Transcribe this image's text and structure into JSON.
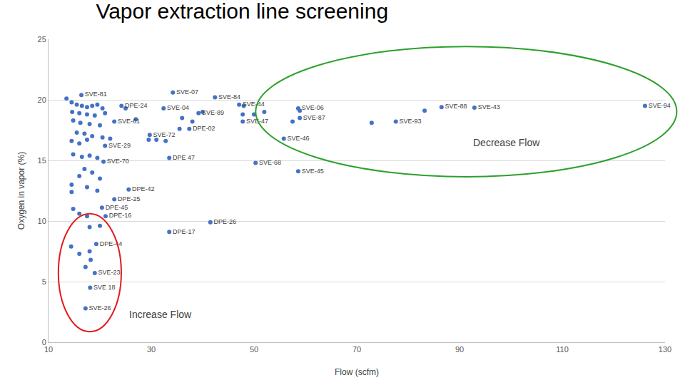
{
  "chart_data": {
    "type": "scatter",
    "title": "Vapor extraction line screening",
    "x_label": "Flow (scfm)",
    "y_label": "Oxygen in vapor (%)",
    "color": "#4472c4",
    "marker": "circle",
    "grid": true,
    "xlim": [
      10,
      130
    ],
    "xticks": [
      10,
      30,
      50,
      70,
      90,
      110,
      130
    ],
    "ylim": [
      0,
      25
    ],
    "yticks": [
      0,
      5,
      10,
      15,
      20,
      25
    ],
    "annotations": [
      "Decrease Flow",
      "Increase Flow"
    ],
    "x": [
      34.2,
      42.4,
      47.1,
      58.6,
      58.9,
      57.5,
      83.2,
      86.5,
      92.9,
      126.1,
      77.6,
      55.8,
      50.3,
      58.6,
      32.4,
      39.2,
      37.4,
      29.7,
      33.5,
      41.5,
      33.5,
      16.4,
      24.2,
      22.8,
      21.0,
      20.7,
      25.6,
      22.8,
      20.4,
      21.1,
      19.3,
      18.2,
      17.2,
      19.0,
      18.1,
      17.2,
      14.4,
      47.8,
      47.8,
      32.8,
      14.5,
      15.5,
      16.5,
      17.5,
      18.5,
      19.5,
      20.5,
      14.6,
      16.0,
      17.5,
      19.0,
      21.0,
      14.8,
      16.2,
      18.0,
      20.0,
      15.5,
      17.0,
      18.5,
      20.5,
      14.5,
      16.0,
      17.5,
      22.0,
      14.8,
      16.5,
      18.0,
      19.5,
      17.0,
      18.5,
      16.0,
      20.0,
      14.5,
      14.5,
      17.5,
      19.5,
      14.8,
      16.0,
      17.5,
      18.0,
      20.0,
      16.0,
      18.0,
      13.5,
      25.0,
      27.0,
      29.5,
      31.0,
      36.0,
      38.0,
      35.5,
      50.0,
      48.0,
      52.0,
      72.9,
      58.9,
      40.0
    ],
    "values": [
      20.6,
      20.2,
      19.6,
      19.3,
      18.5,
      18.2,
      19.1,
      19.4,
      19.35,
      19.5,
      18.2,
      16.8,
      14.8,
      14.1,
      19.3,
      18.9,
      17.6,
      17.1,
      15.2,
      9.9,
      9.1,
      20.4,
      19.5,
      18.2,
      16.2,
      14.9,
      12.6,
      11.8,
      11.1,
      10.4,
      8.1,
      6.8,
      6.2,
      5.7,
      4.5,
      2.8,
      7.9,
      18.2,
      18.8,
      16.6,
      19.8,
      19.6,
      19.5,
      19.4,
      19.5,
      19.6,
      19.3,
      19.0,
      18.9,
      18.8,
      18.7,
      18.9,
      18.3,
      18.1,
      18.0,
      17.9,
      17.3,
      17.2,
      17.0,
      16.9,
      16.6,
      16.4,
      16.7,
      16.8,
      15.5,
      15.3,
      15.4,
      15.2,
      14.3,
      14.0,
      13.7,
      13.5,
      13.0,
      12.4,
      12.8,
      12.5,
      11.0,
      10.6,
      10.4,
      9.5,
      9.6,
      7.3,
      7.5,
      20.1,
      19.3,
      18.4,
      16.7,
      16.7,
      18.5,
      18.2,
      17.6,
      18.8,
      19.5,
      19.0,
      18.1,
      19.1,
      19.0
    ],
    "labels": [
      "SVE-07",
      "SVE-84",
      "SVE-44",
      "SVE-06",
      "SVE-87",
      null,
      null,
      "SVE-88",
      "SVE-43",
      "SVE-94",
      "SVE-93",
      "SVE-46",
      "SVE-68",
      "SVE-45",
      "SVE-04",
      "SVE-89",
      "DPE-02",
      "SVE-72",
      "DPE 47",
      "DPE-26",
      "DPE-17",
      "SVE-81",
      "DPE-24",
      "SVE-61",
      "SVE-29",
      "SVE-70",
      "DPE-42",
      "DPE-25",
      "DPE-45",
      "DPE-16",
      "DPE-44",
      null,
      null,
      "SVE-23",
      "SVE 18",
      "SVE-26",
      null,
      "SVE-47",
      null,
      null,
      null,
      null,
      null,
      null,
      null,
      null,
      null,
      null,
      null,
      null,
      null,
      null,
      null,
      null,
      null,
      null,
      null,
      null,
      null,
      null,
      null,
      null,
      null,
      null,
      null,
      null,
      null,
      null,
      null,
      null,
      null,
      null,
      null,
      null,
      null,
      null,
      null,
      null,
      null,
      null,
      null,
      null,
      null,
      null,
      null,
      null,
      null,
      null,
      null,
      null,
      null,
      null,
      null,
      null,
      null,
      null,
      null
    ]
  }
}
